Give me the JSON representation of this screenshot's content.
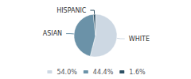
{
  "chart_data": {
    "type": "pie",
    "categories": [
      "WHITE",
      "ASIAN",
      "HISPANIC"
    ],
    "values": [
      54.0,
      44.4,
      1.6
    ],
    "value_labels": [
      "54.0%",
      "44.4%",
      "1.6%"
    ],
    "colors": [
      "#cdd8e3",
      "#6b92a8",
      "#2d4f63"
    ],
    "legend": "bottom"
  }
}
